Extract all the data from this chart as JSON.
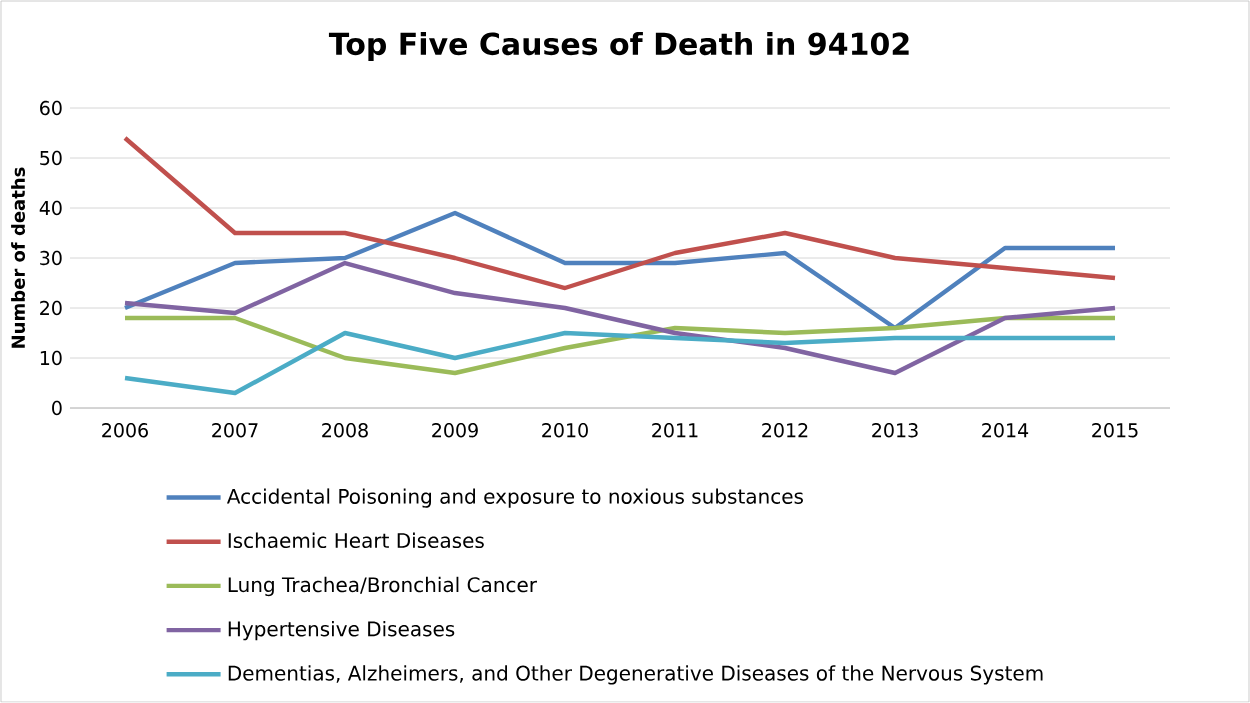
{
  "chart_data": {
    "type": "line",
    "title": "Top Five Causes of Death in 94102",
    "ylabel": "Number of deaths",
    "categories": [
      "2006",
      "2007",
      "2008",
      "2009",
      "2010",
      "2011",
      "2012",
      "2013",
      "2014",
      "2015"
    ],
    "series": [
      {
        "name": "Accidental Poisoning and exposure to noxious substances",
        "color": "#4f81bd",
        "values": [
          20,
          29,
          30,
          39,
          29,
          29,
          31,
          16,
          32,
          32
        ]
      },
      {
        "name": "Ischaemic Heart Diseases",
        "color": "#c0504d",
        "values": [
          54,
          35,
          35,
          30,
          24,
          31,
          35,
          30,
          28,
          26
        ]
      },
      {
        "name": "Lung Trachea/Bronchial Cancer",
        "color": "#9bbb59",
        "values": [
          18,
          18,
          10,
          7,
          12,
          16,
          15,
          16,
          18,
          18
        ]
      },
      {
        "name": "Hypertensive Diseases",
        "color": "#8064a2",
        "values": [
          21,
          19,
          29,
          23,
          20,
          15,
          12,
          7,
          18,
          20
        ]
      },
      {
        "name": "Dementias, Alzheimers, and Other Degenerative Diseases of the Nervous System",
        "color": "#4bacc6",
        "values": [
          6,
          3,
          15,
          10,
          15,
          14,
          13,
          14,
          14,
          14
        ]
      }
    ],
    "ylim": [
      0,
      60
    ],
    "yticks": [
      0,
      10,
      20,
      30,
      40,
      50,
      60
    ],
    "grid": "y",
    "legend": "bottom",
    "marker": "none"
  }
}
